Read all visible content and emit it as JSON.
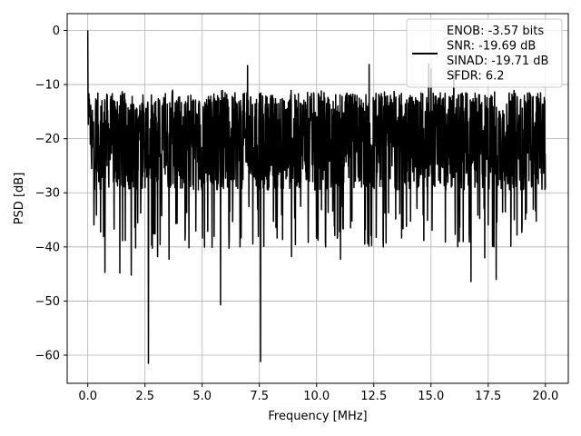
{
  "chart_data": {
    "type": "line",
    "xlabel": "Frequency [MHz]",
    "ylabel": "PSD [dB]",
    "xlim": [
      -0.9,
      21.0
    ],
    "ylim": [
      -65.2,
      3.1
    ],
    "xticks": [
      0.0,
      2.5,
      5.0,
      7.5,
      10.0,
      12.5,
      15.0,
      17.5,
      20.0
    ],
    "xtick_labels": [
      "0.0",
      "2.5",
      "5.0",
      "7.5",
      "10.0",
      "12.5",
      "15.0",
      "17.5",
      "20.0"
    ],
    "yticks": [
      0,
      -10,
      -20,
      -30,
      -40,
      -50,
      -60
    ],
    "ytick_labels": [
      "0",
      "−10",
      "−20",
      "−30",
      "−40",
      "−50",
      "−60"
    ],
    "grid": true,
    "legend_position": "top-right",
    "legend_lines": [
      "ENOB: -3.57 bits",
      "SNR: -19.69 dB",
      "SINAD: -19.71 dB",
      "SFDR: 6.2"
    ],
    "series": [
      {
        "color": "#000000",
        "x_range": [
          0.0,
          20.0
        ],
        "points": 2000,
        "baseline_db": -20.5,
        "floor_spread_db": 9,
        "peaks": [
          {
            "x": 0.0,
            "y": 0.0
          },
          {
            "x": 0.1,
            "y": -16.0
          },
          {
            "x": 6.98,
            "y": -6.5
          },
          {
            "x": 12.3,
            "y": -6.3
          },
          {
            "x": 14.9,
            "y": -6.2
          },
          {
            "x": 16.0,
            "y": -7.5
          },
          {
            "x": 15.0,
            "y": -7.0
          }
        ],
        "dips": [
          {
            "x": 2.65,
            "y": -61.5
          },
          {
            "x": 7.55,
            "y": -61.2
          },
          {
            "x": 5.8,
            "y": -50.7
          },
          {
            "x": 16.75,
            "y": -46.4
          },
          {
            "x": 17.85,
            "y": -46.0
          },
          {
            "x": 0.75,
            "y": -44.7
          },
          {
            "x": 1.4,
            "y": -44.8
          },
          {
            "x": 1.9,
            "y": -45.2
          },
          {
            "x": 3.55,
            "y": -42.3
          },
          {
            "x": 3.05,
            "y": -41.8
          },
          {
            "x": 8.9,
            "y": -41.8
          },
          {
            "x": 11.05,
            "y": -42.3
          },
          {
            "x": 17.35,
            "y": -42.0
          },
          {
            "x": 10.4,
            "y": -40.0
          },
          {
            "x": 6.65,
            "y": -40.0
          }
        ]
      }
    ]
  }
}
